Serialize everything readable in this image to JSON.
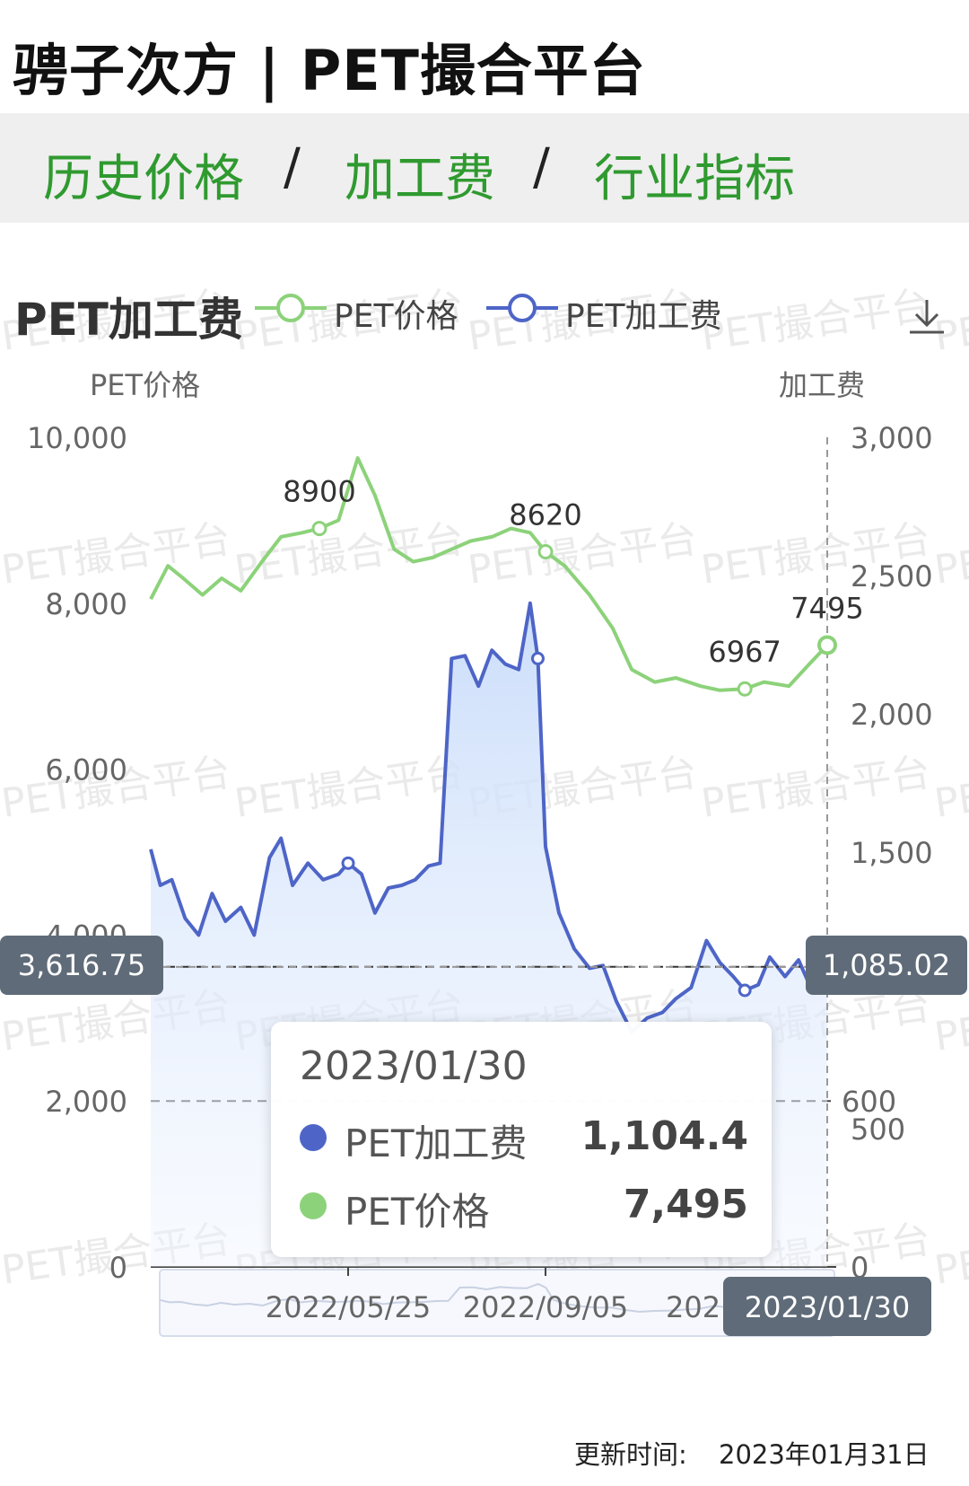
{
  "brand": "骋子次方 | PET撮合平台",
  "nav": {
    "tab_history": "历史价格",
    "tab_fee": "加工费",
    "tab_indicators": "行业指标",
    "separator": "/"
  },
  "chart_data": {
    "type": "line",
    "title": "PET加工费",
    "legend": {
      "placement": "top",
      "items": [
        "PET价格",
        "PET加工费"
      ]
    },
    "watermark": "PET撮合平台",
    "y_left": {
      "title": "PET价格",
      "range": [
        0,
        10000
      ],
      "ticks": [
        "0",
        "2,000",
        "4,000",
        "6,000",
        "8,000",
        "10,000"
      ]
    },
    "y_right": {
      "title": "加工费",
      "range": [
        0,
        3000
      ],
      "ticks": [
        "0",
        "500",
        "1,500",
        "2,000",
        "2,500",
        "3,000"
      ],
      "extra_tick": "600"
    },
    "x_axis": {
      "range": [
        "2022/02/11",
        "2023/01/30"
      ],
      "tick_labels": [
        "2022/05/25",
        "2022/09/05",
        "202"
      ],
      "cursor_label": "2023/01/30"
    },
    "series": [
      {
        "name": "PET价格",
        "axis": "left",
        "color": "#8cd27a",
        "points": [
          [
            "2022/02/11",
            8050
          ],
          [
            "2022/02/20",
            8450
          ],
          [
            "2022/02/28",
            8300
          ],
          [
            "2022/03/10",
            8100
          ],
          [
            "2022/03/20",
            8300
          ],
          [
            "2022/03/30",
            8150
          ],
          [
            "2022/04/10",
            8500
          ],
          [
            "2022/04/20",
            8800
          ],
          [
            "2022/05/01",
            8850
          ],
          [
            "2022/05/10",
            8900
          ],
          [
            "2022/05/20",
            9000
          ],
          [
            "2022/05/30",
            9750
          ],
          [
            "2022/06/08",
            9300
          ],
          [
            "2022/06/18",
            8650
          ],
          [
            "2022/06/28",
            8500
          ],
          [
            "2022/07/08",
            8550
          ],
          [
            "2022/07/18",
            8650
          ],
          [
            "2022/07/28",
            8750
          ],
          [
            "2022/08/08",
            8800
          ],
          [
            "2022/08/18",
            8900
          ],
          [
            "2022/08/28",
            8850
          ],
          [
            "2022/09/05",
            8620
          ],
          [
            "2022/09/15",
            8450
          ],
          [
            "2022/09/28",
            8100
          ],
          [
            "2022/10/10",
            7700
          ],
          [
            "2022/10/20",
            7200
          ],
          [
            "2022/11/01",
            7050
          ],
          [
            "2022/11/12",
            7100
          ],
          [
            "2022/11/25",
            7000
          ],
          [
            "2022/12/05",
            6950
          ],
          [
            "2022/12/18",
            6967
          ],
          [
            "2022/12/28",
            7050
          ],
          [
            "2023/01/10",
            7000
          ],
          [
            "2023/01/20",
            7250
          ],
          [
            "2023/01/30",
            7495
          ]
        ],
        "labels": [
          {
            "x": "2022/05/10",
            "text": "8900"
          },
          {
            "x": "2022/09/05",
            "text": "8620"
          },
          {
            "x": "2022/12/18",
            "text": "6967"
          },
          {
            "x": "2023/01/30",
            "text": "7495"
          }
        ]
      },
      {
        "name": "PET加工费",
        "axis": "right",
        "color": "#4e65c7",
        "points": [
          [
            "2022/02/11",
            1510
          ],
          [
            "2022/02/16",
            1380
          ],
          [
            "2022/02/22",
            1400
          ],
          [
            "2022/03/01",
            1260
          ],
          [
            "2022/03/08",
            1200
          ],
          [
            "2022/03/15",
            1350
          ],
          [
            "2022/03/22",
            1250
          ],
          [
            "2022/03/30",
            1300
          ],
          [
            "2022/04/06",
            1200
          ],
          [
            "2022/04/14",
            1480
          ],
          [
            "2022/04/20",
            1550
          ],
          [
            "2022/04/26",
            1380
          ],
          [
            "2022/05/04",
            1460
          ],
          [
            "2022/05/12",
            1400
          ],
          [
            "2022/05/20",
            1420
          ],
          [
            "2022/05/25",
            1460
          ],
          [
            "2022/06/01",
            1420
          ],
          [
            "2022/06/08",
            1280
          ],
          [
            "2022/06/15",
            1370
          ],
          [
            "2022/06/22",
            1380
          ],
          [
            "2022/06/29",
            1400
          ],
          [
            "2022/07/06",
            1450
          ],
          [
            "2022/07/12",
            1460
          ],
          [
            "2022/07/18",
            2200
          ],
          [
            "2022/07/25",
            2210
          ],
          [
            "2022/08/01",
            2100
          ],
          [
            "2022/08/08",
            2230
          ],
          [
            "2022/08/15",
            2180
          ],
          [
            "2022/08/22",
            2160
          ],
          [
            "2022/08/28",
            2400
          ],
          [
            "2022/09/01",
            2200
          ],
          [
            "2022/09/05",
            1520
          ],
          [
            "2022/09/12",
            1280
          ],
          [
            "2022/09/20",
            1150
          ],
          [
            "2022/09/28",
            1080
          ],
          [
            "2022/10/05",
            1090
          ],
          [
            "2022/10/12",
            960
          ],
          [
            "2022/10/20",
            850
          ],
          [
            "2022/10/28",
            900
          ],
          [
            "2022/11/05",
            920
          ],
          [
            "2022/11/12",
            970
          ],
          [
            "2022/11/20",
            1010
          ],
          [
            "2022/11/28",
            1180
          ],
          [
            "2022/12/05",
            1100
          ],
          [
            "2022/12/12",
            1050
          ],
          [
            "2022/12/18",
            1000
          ],
          [
            "2022/12/25",
            1020
          ],
          [
            "2022/12/31",
            1120
          ],
          [
            "2023/01/08",
            1050
          ],
          [
            "2023/01/15",
            1110
          ],
          [
            "2023/01/22",
            1000
          ],
          [
            "2023/01/30",
            1104.4
          ]
        ]
      }
    ],
    "crosshair": {
      "left_value_label": "3,616.75",
      "right_value_label": "1,085.02",
      "date_label": "2023/01/30"
    },
    "tooltip": {
      "date": "2023/01/30",
      "rows": [
        {
          "series": "PET加工费",
          "value": "1,104.4",
          "color": "#4e65c7"
        },
        {
          "series": "PET价格",
          "value": "7,495",
          "color": "#8cd27a"
        }
      ]
    }
  },
  "footer": {
    "label": "更新时间:",
    "value": "2023年01月31日"
  }
}
